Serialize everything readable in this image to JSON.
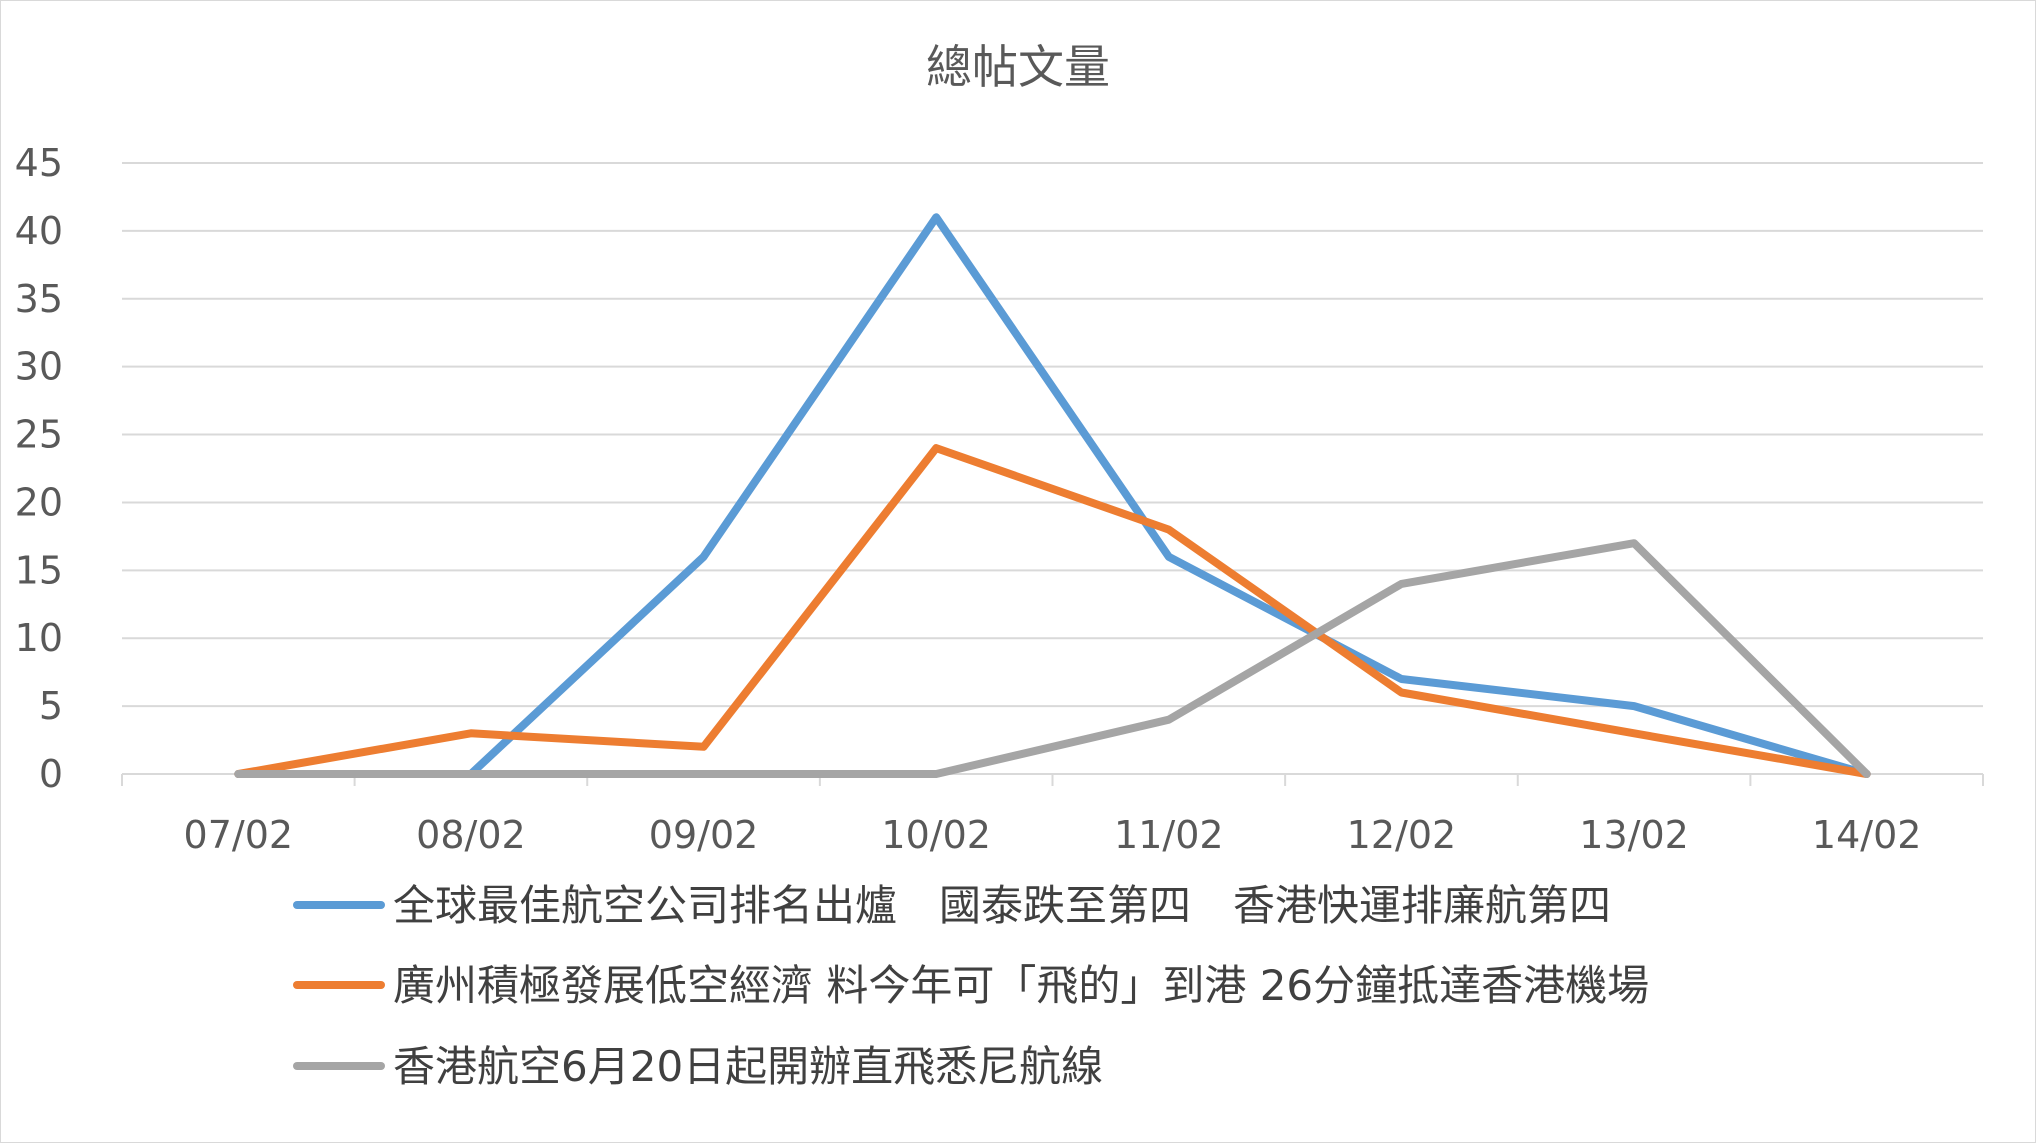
{
  "chart_data": {
    "type": "line",
    "title": "總帖文量",
    "xlabel": "",
    "ylabel": "",
    "categories": [
      "07/02",
      "08/02",
      "09/02",
      "10/02",
      "11/02",
      "12/02",
      "13/02",
      "14/02"
    ],
    "ylim": [
      0,
      45
    ],
    "yticks": [
      0,
      5,
      10,
      15,
      20,
      25,
      30,
      35,
      40,
      45
    ],
    "grid": true,
    "legend_position": "bottom",
    "series": [
      {
        "name": "全球最佳航空公司排名出爐　國泰跌至第四　香港快運排廉航第四",
        "color": "#5b9bd5",
        "values": [
          0,
          0,
          16,
          41,
          16,
          7,
          5,
          0
        ]
      },
      {
        "name": "廣州積極發展低空經濟 料今年可「飛的」到港 26分鐘抵達香港機場",
        "color": "#ed7d31",
        "values": [
          0,
          3,
          2,
          24,
          18,
          6,
          3,
          0
        ]
      },
      {
        "name": "香港航空6月20日起開辦直飛悉尼航線",
        "color": "#a5a5a5",
        "values": [
          0,
          0,
          0,
          0,
          4,
          14,
          17,
          0
        ]
      }
    ]
  }
}
